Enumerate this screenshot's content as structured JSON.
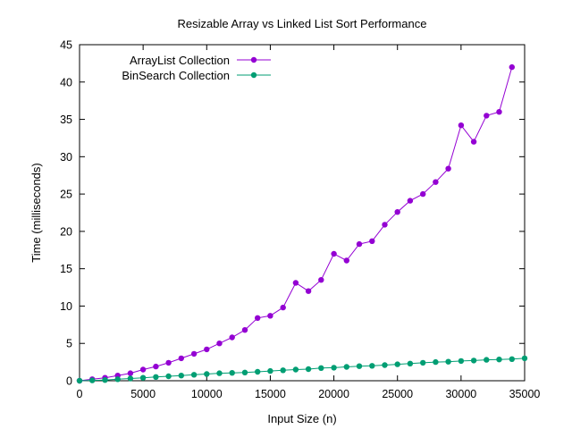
{
  "chart_data": {
    "type": "line",
    "title": "Resizable Array vs Linked List Sort Performance",
    "xlabel": "Input Size (n)",
    "ylabel": "Time (milliseconds)",
    "xlim": [
      0,
      35000
    ],
    "ylim": [
      0,
      45
    ],
    "xticks": [
      0,
      5000,
      10000,
      15000,
      20000,
      25000,
      30000,
      35000
    ],
    "yticks": [
      0,
      5,
      10,
      15,
      20,
      25,
      30,
      35,
      40,
      45
    ],
    "grid": false,
    "legend_position": "top-left",
    "x": [
      0,
      1000,
      2000,
      3000,
      4000,
      5000,
      6000,
      7000,
      8000,
      9000,
      10000,
      11000,
      12000,
      13000,
      14000,
      15000,
      16000,
      17000,
      18000,
      19000,
      20000,
      21000,
      22000,
      23000,
      24000,
      25000,
      26000,
      27000,
      28000,
      29000,
      30000,
      31000,
      32000,
      33000,
      34000,
      35000
    ],
    "series": [
      {
        "name": "ArrayList Collection",
        "color": "#9400d3",
        "values": [
          0.0,
          0.2,
          0.4,
          0.7,
          1.0,
          1.5,
          1.9,
          2.4,
          3.0,
          3.6,
          4.2,
          5.0,
          5.8,
          6.8,
          8.4,
          8.7,
          9.8,
          13.1,
          12.0,
          13.5,
          17.0,
          16.1,
          18.3,
          18.7,
          20.9,
          22.6,
          24.1,
          25.0,
          26.6,
          28.4,
          34.2,
          32.0,
          35.5,
          36.0,
          42.0,
          null
        ]
      },
      {
        "name": "BinSearch Collection",
        "color": "#009e73",
        "values": [
          0.0,
          0.05,
          0.1,
          0.2,
          0.3,
          0.4,
          0.5,
          0.6,
          0.7,
          0.8,
          0.9,
          1.0,
          1.05,
          1.1,
          1.2,
          1.3,
          1.4,
          1.5,
          1.55,
          1.7,
          1.75,
          1.85,
          1.95,
          2.0,
          2.1,
          2.2,
          2.3,
          2.4,
          2.5,
          2.55,
          2.65,
          2.7,
          2.8,
          2.85,
          2.9,
          3.0
        ]
      }
    ]
  }
}
